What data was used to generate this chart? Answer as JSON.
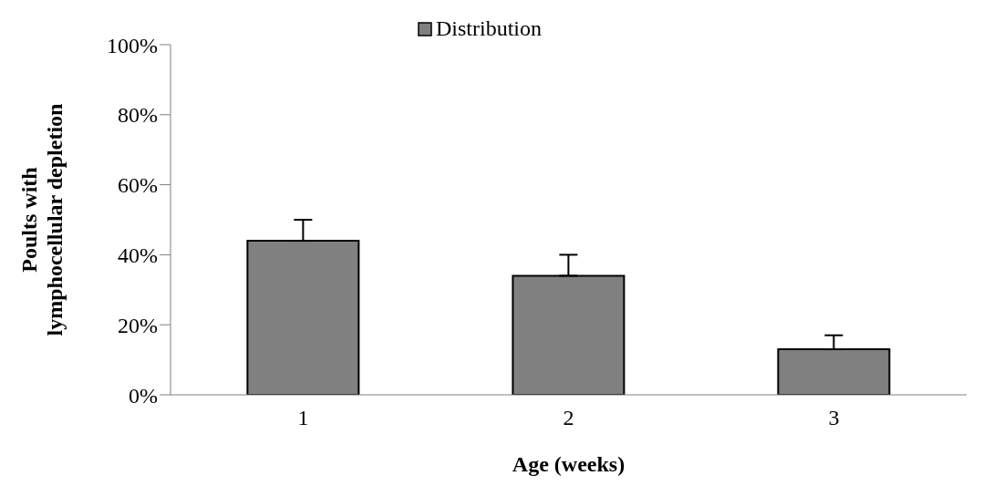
{
  "chart_data": {
    "type": "bar",
    "xlabel": "Age (weeks)",
    "ylabel": "Poults with lymphocellular depletion",
    "categories": [
      "1",
      "2",
      "3"
    ],
    "series": [
      {
        "name": "Distribution",
        "color": "#808080",
        "values": [
          44,
          34,
          13
        ],
        "errors": [
          [
            44,
            50
          ],
          [
            34,
            40
          ],
          [
            13,
            17
          ]
        ]
      }
    ],
    "ylim": [
      0,
      100
    ],
    "yticks": [
      {
        "value": 0,
        "label": "0%"
      },
      {
        "value": 20,
        "label": "20%"
      },
      {
        "value": 40,
        "label": "40%"
      },
      {
        "value": 60,
        "label": "60%"
      },
      {
        "value": 80,
        "label": "80%"
      },
      {
        "value": 100,
        "label": "100%"
      }
    ],
    "legend": "top",
    "grid": false
  }
}
